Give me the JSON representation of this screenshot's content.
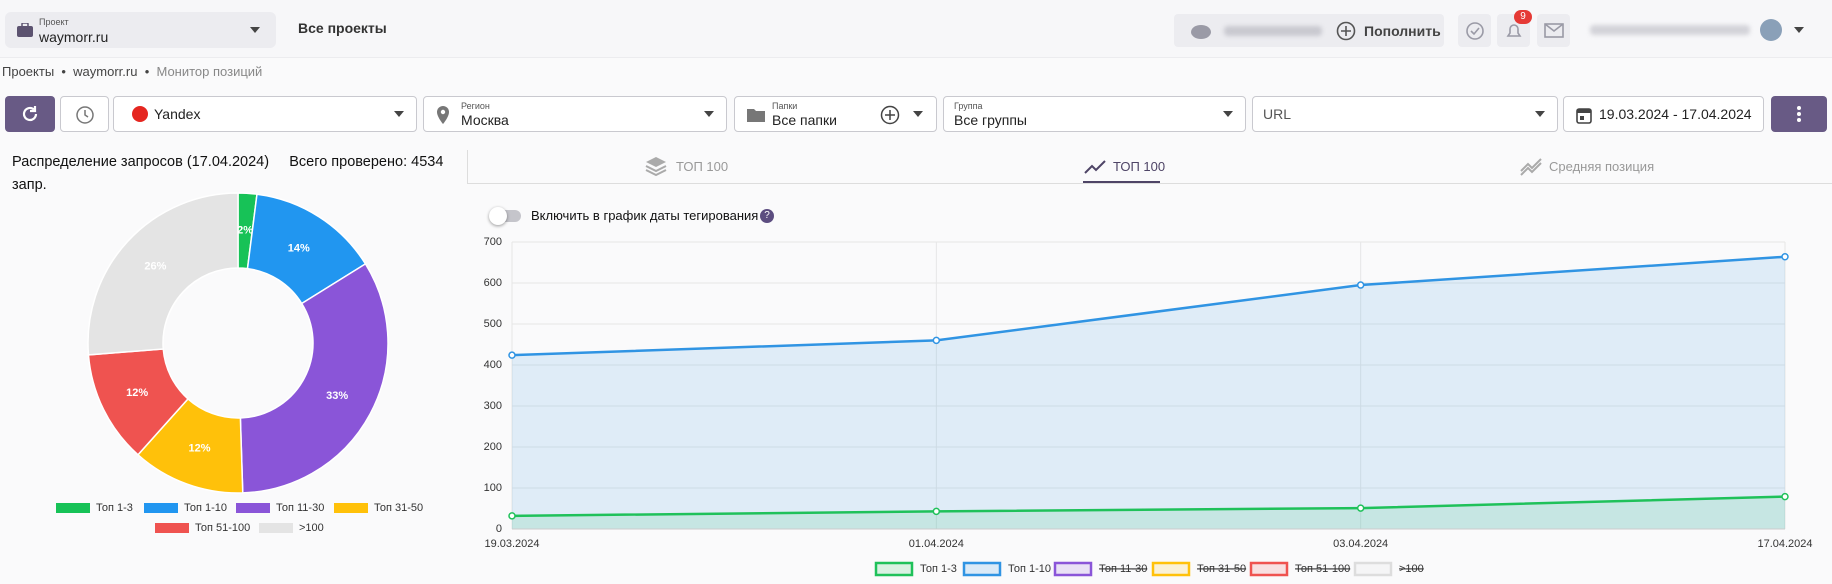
{
  "header": {
    "project_label": "Проект",
    "project": "waymorr.ru",
    "all_projects": "Все проекты",
    "top_up": "Пополнить",
    "notifications": "9"
  },
  "breadcrumbs": [
    "Проекты",
    "waymorr.ru",
    "Монитор позиций"
  ],
  "filters": {
    "engine": "Yandex",
    "region_label": "Регион",
    "region": "Москва",
    "folders_label": "Папки",
    "folders": "Все папки",
    "group_label": "Группа",
    "group": "Все группы",
    "url": "URL",
    "date_range": "19.03.2024 - 17.04.2024"
  },
  "tabs": [
    "ТОП 100",
    "ТОП 100",
    "Средняя позиция"
  ],
  "toggle_label": "Включить в график даты тегирования",
  "chart_data": [
    {
      "type": "pie",
      "title": "Распределение запросов (17.04.2024)",
      "subtitle": "Всего проверено: 4534 запр.",
      "categories": [
        "Топ 1-3",
        "Топ 1-10",
        "Топ 11-30",
        "Топ 31-50",
        "Топ 51-100",
        ">100"
      ],
      "values": [
        2,
        14,
        33,
        12,
        12,
        26
      ],
      "value_labels": [
        "2%",
        "14%",
        "33%",
        "12%",
        "12%",
        "26%"
      ],
      "colors": [
        "#17c257",
        "#2196f0",
        "#8a55d8",
        "#ffc10a",
        "#ef5350",
        "#e4e4e4"
      ],
      "donut": true
    },
    {
      "type": "line",
      "categories": [
        "19.03.2024",
        "01.04.2024",
        "03.04.2024",
        "17.04.2024"
      ],
      "series": [
        {
          "name": "Топ 1-3",
          "color": "#1fc15a",
          "values": [
            32,
            43,
            51,
            79
          ]
        },
        {
          "name": "Топ 1-10",
          "color": "#3094e3",
          "values": [
            424,
            460,
            595,
            664
          ]
        },
        {
          "name": "Топ 11-30",
          "color": "#8a55d8",
          "hidden": true
        },
        {
          "name": "Топ 31-50",
          "color": "#ffc10a",
          "hidden": true
        },
        {
          "name": "Топ 51-100",
          "color": "#ef5350",
          "hidden": true
        },
        {
          "name": ">100",
          "color": "#dddddd",
          "hidden": true
        }
      ],
      "ylim": [
        0,
        700
      ],
      "yticks": [
        0,
        100,
        200,
        300,
        400,
        500,
        600,
        700
      ],
      "grid": true,
      "area": true
    }
  ]
}
